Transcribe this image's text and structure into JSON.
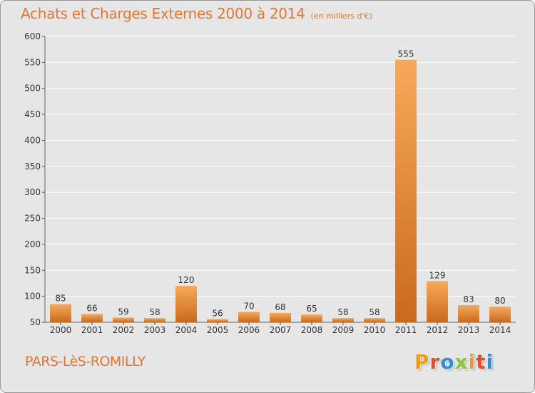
{
  "header": {
    "title": "Achats et Charges Externes 2000 à 2014",
    "subtitle": "(en milliers d'€)"
  },
  "footer": {
    "commune": "PARS-LèS-ROMILLY",
    "brand_letters": [
      "P",
      "r",
      "o",
      "x",
      "i",
      "t",
      "i"
    ],
    "brand_colors": [
      "#f39a1e",
      "#e84b2c",
      "#2e8fd6",
      "#8cc43c",
      "#f39a1e",
      "#e84b2c",
      "#2e8fd6"
    ]
  },
  "colors": {
    "title": "#e8762f",
    "bar_light": "#f7a95a",
    "bar_dark": "#c96a1c",
    "background": "#e6e6e6",
    "grid": "#ffffff"
  },
  "chart_data": {
    "type": "bar",
    "title": "Achats et Charges Externes 2000 à 2014",
    "subtitle": "(en milliers d'€)",
    "categories": [
      "2000",
      "2001",
      "2002",
      "2003",
      "2004",
      "2005",
      "2006",
      "2007",
      "2008",
      "2009",
      "2010",
      "2011",
      "2012",
      "2013",
      "2014"
    ],
    "values": [
      85,
      66,
      59,
      58,
      120,
      56,
      70,
      68,
      65,
      58,
      58,
      555,
      129,
      83,
      80
    ],
    "ylim": [
      50,
      600
    ],
    "yticks": [
      50,
      100,
      150,
      200,
      250,
      300,
      350,
      400,
      450,
      500,
      550,
      600
    ],
    "grid": true,
    "xlabel": "",
    "ylabel": ""
  }
}
